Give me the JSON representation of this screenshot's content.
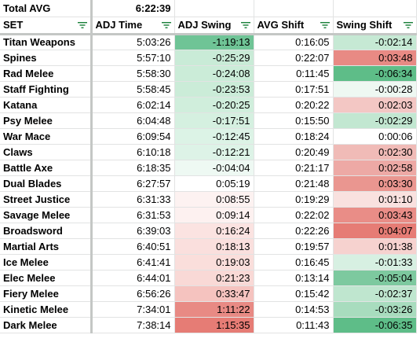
{
  "summary": {
    "label": "Total AVG",
    "value": "6:22:39"
  },
  "columns": [
    {
      "label": "SET",
      "icon": "filter-icon"
    },
    {
      "label": "ADJ Time",
      "icon": "filter-icon"
    },
    {
      "label": "ADJ Swing",
      "icon": "filter-icon"
    },
    {
      "label": "AVG Shift",
      "icon": "filter-icon"
    },
    {
      "label": "Swing Shift",
      "icon": "filter-icon"
    }
  ],
  "rows": [
    {
      "set": "Titan Weapons",
      "adj_time": "5:03:26",
      "adj_swing": "-1:19:13",
      "avg_shift": "0:16:05",
      "swing_shift": "-0:02:14",
      "adj_swing_color": "#6fc496",
      "swing_shift_color": "#c6e9d4"
    },
    {
      "set": "Spines",
      "adj_time": "5:57:10",
      "adj_swing": "-0:25:29",
      "avg_shift": "0:22:07",
      "swing_shift": "0:03:48",
      "adj_swing_color": "#c9ebd7",
      "swing_shift_color": "#e88a84"
    },
    {
      "set": "Rad Melee",
      "adj_time": "5:58:30",
      "adj_swing": "-0:24:08",
      "avg_shift": "0:11:45",
      "swing_shift": "-0:06:34",
      "adj_swing_color": "#cbecd8",
      "swing_shift_color": "#5ebd88"
    },
    {
      "set": "Staff Fighting",
      "adj_time": "5:58:45",
      "adj_swing": "-0:23:53",
      "avg_shift": "0:17:51",
      "swing_shift": "-0:00:28",
      "adj_swing_color": "#cbecd8",
      "swing_shift_color": "#eef8f2"
    },
    {
      "set": "Katana",
      "adj_time": "6:02:14",
      "adj_swing": "-0:20:25",
      "avg_shift": "0:20:22",
      "swing_shift": "0:02:03",
      "adj_swing_color": "#d0eedc",
      "swing_shift_color": "#f3c7c4"
    },
    {
      "set": "Psy Melee",
      "adj_time": "6:04:48",
      "adj_swing": "-0:17:51",
      "avg_shift": "0:15:50",
      "swing_shift": "-0:02:29",
      "adj_swing_color": "#d5f0e0",
      "swing_shift_color": "#c2e7d1"
    },
    {
      "set": "War Mace",
      "adj_time": "6:09:54",
      "adj_swing": "-0:12:45",
      "avg_shift": "0:18:24",
      "swing_shift": "0:00:06",
      "adj_swing_color": "#dcf3e6",
      "swing_shift_color": "#ffffff"
    },
    {
      "set": "Claws",
      "adj_time": "6:10:18",
      "adj_swing": "-0:12:21",
      "avg_shift": "0:20:49",
      "swing_shift": "0:02:30",
      "adj_swing_color": "#ddf3e7",
      "swing_shift_color": "#f0bbb7"
    },
    {
      "set": "Battle Axe",
      "adj_time": "6:18:35",
      "adj_swing": "-0:04:04",
      "avg_shift": "0:21:17",
      "swing_shift": "0:02:58",
      "adj_swing_color": "#eef9f3",
      "swing_shift_color": "#eda9a5"
    },
    {
      "set": "Dual Blades",
      "adj_time": "6:27:57",
      "adj_swing": "0:05:19",
      "avg_shift": "0:21:48",
      "swing_shift": "0:03:30",
      "adj_swing_color": "#ffffff",
      "swing_shift_color": "#ea9690"
    },
    {
      "set": "Street Justice",
      "adj_time": "6:31:33",
      "adj_swing": "0:08:55",
      "avg_shift": "0:19:29",
      "swing_shift": "0:01:10",
      "adj_swing_color": "#fdf2f1",
      "swing_shift_color": "#f9e1df"
    },
    {
      "set": "Savage Melee",
      "adj_time": "6:31:53",
      "adj_swing": "0:09:14",
      "avg_shift": "0:22:02",
      "swing_shift": "0:03:43",
      "adj_swing_color": "#fdf1f0",
      "swing_shift_color": "#e98d87"
    },
    {
      "set": "Broadsword",
      "adj_time": "6:39:03",
      "adj_swing": "0:16:24",
      "avg_shift": "0:22:26",
      "swing_shift": "0:04:07",
      "adj_swing_color": "#fbe3e1",
      "swing_shift_color": "#e67c75"
    },
    {
      "set": "Martial Arts",
      "adj_time": "6:40:51",
      "adj_swing": "0:18:13",
      "avg_shift": "0:19:57",
      "swing_shift": "0:01:38",
      "adj_swing_color": "#fadfdd",
      "swing_shift_color": "#f6d2cf"
    },
    {
      "set": "Ice Melee",
      "adj_time": "6:41:41",
      "adj_swing": "0:19:03",
      "avg_shift": "0:16:45",
      "swing_shift": "-0:01:33",
      "adj_swing_color": "#fadedb",
      "swing_shift_color": "#d7f0e2"
    },
    {
      "set": "Elec Melee",
      "adj_time": "6:44:01",
      "adj_swing": "0:21:23",
      "avg_shift": "0:13:14",
      "swing_shift": "-0:05:04",
      "adj_swing_color": "#f9d9d6",
      "swing_shift_color": "#7dc99f"
    },
    {
      "set": "Fiery Melee",
      "adj_time": "6:56:26",
      "adj_swing": "0:33:47",
      "avg_shift": "0:15:42",
      "swing_shift": "-0:02:37",
      "adj_swing_color": "#f5c3bf",
      "swing_shift_color": "#bfe6cf"
    },
    {
      "set": "Kinetic Melee",
      "adj_time": "7:34:01",
      "adj_swing": "1:11:22",
      "avg_shift": "0:14:53",
      "swing_shift": "-0:03:26",
      "adj_swing_color": "#e88a84",
      "swing_shift_color": "#a8dcbe"
    },
    {
      "set": "Dark Melee",
      "adj_time": "7:38:14",
      "adj_swing": "1:15:35",
      "avg_shift": "0:11:43",
      "swing_shift": "-0:06:35",
      "adj_swing_color": "#e67c75",
      "swing_shift_color": "#5ebd88"
    }
  ],
  "colors": {
    "filter_icon": "#188038",
    "grid": "#e2e3e3",
    "freeze_line": "#c4c7c5"
  }
}
